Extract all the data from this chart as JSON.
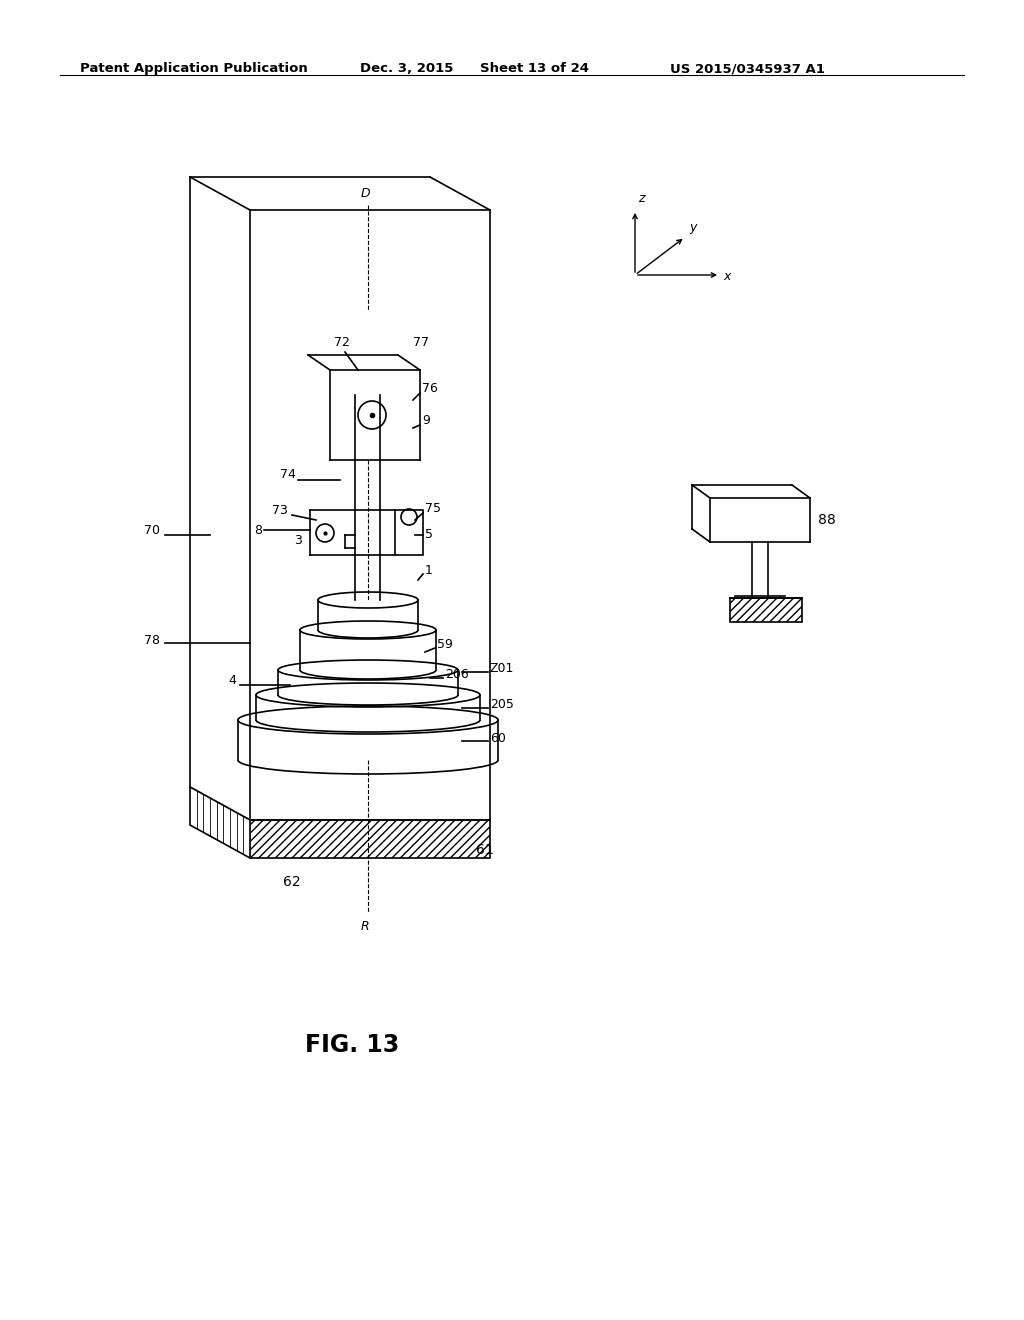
{
  "bg_color": "#ffffff",
  "header_left": "Patent Application Publication",
  "header_center": "Dec. 3, 2015",
  "header_sheet": "Sheet 13 of 24",
  "header_right": "US 2015/0345937 A1",
  "fig_label": "FIG. 13"
}
